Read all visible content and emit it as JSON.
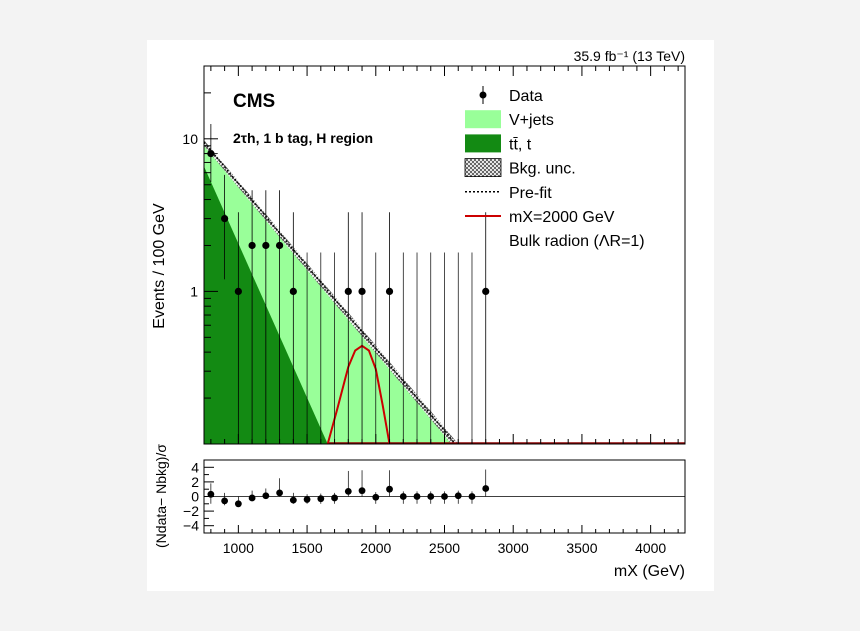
{
  "chart_data": [
    {
      "type": "stacked-area-with-points",
      "panel": "upper",
      "lumi_label": "35.9 fb⁻¹ (13 TeV)",
      "experiment": "CMS",
      "region_label": "2τh, 1 b tag, H region",
      "ylabel": "Events / 100 GeV",
      "yscale": "log",
      "ylim": [
        0.1,
        30
      ],
      "xlim": [
        750,
        4250
      ],
      "yticks": [
        "1",
        "10"
      ],
      "legend": [
        {
          "key": "data",
          "label": "Data"
        },
        {
          "key": "vjets",
          "label": "V+jets",
          "color": "#99ff99"
        },
        {
          "key": "ttbar",
          "label": "tt̄, t",
          "color": "#138a13"
        },
        {
          "key": "bkgunc",
          "label": "Bkg. unc."
        },
        {
          "key": "prefit",
          "label": "Pre-fit"
        },
        {
          "key": "signal",
          "label": "mX=2000 GeV",
          "color": "#cc0000"
        },
        {
          "key": "signal2",
          "label": "Bulk radion (ΛR=1)"
        }
      ],
      "data_points": [
        {
          "x": 800,
          "y": 8,
          "lo": 5.2,
          "hi": 12.5
        },
        {
          "x": 900,
          "y": 3,
          "lo": 1.2,
          "hi": 5.8
        },
        {
          "x": 1000,
          "y": 1,
          "lo": 0.1,
          "hi": 3.3
        },
        {
          "x": 1100,
          "y": 2,
          "lo": 0.1,
          "hi": 4.6
        },
        {
          "x": 1200,
          "y": 2,
          "lo": 0.1,
          "hi": 4.6
        },
        {
          "x": 1300,
          "y": 2,
          "lo": 0.1,
          "hi": 4.6
        },
        {
          "x": 1400,
          "y": 1,
          "lo": 0.1,
          "hi": 3.3
        },
        {
          "x": 1800,
          "y": 1,
          "lo": 0.1,
          "hi": 3.3
        },
        {
          "x": 1900,
          "y": 1,
          "lo": 0.1,
          "hi": 3.3
        },
        {
          "x": 2100,
          "y": 1,
          "lo": 0.1,
          "hi": 3.3
        },
        {
          "x": 2800,
          "y": 1,
          "lo": 0.1,
          "hi": 3.3
        }
      ],
      "empty_bins": [
        1500,
        1600,
        1700,
        2000,
        2200,
        2300,
        2400,
        2500,
        2600,
        2700
      ],
      "empty_bin_hi": 1.8,
      "vjets_total": [
        [
          750,
          9.0
        ],
        [
          2550,
          0.1
        ]
      ],
      "ttbar": [
        [
          750,
          6.6
        ],
        [
          1650,
          0.1
        ]
      ],
      "unc_band_upper": [
        [
          750,
          9.8
        ],
        [
          2600,
          0.1
        ]
      ],
      "prefit": [
        [
          750,
          9.5
        ],
        [
          2580,
          0.1
        ]
      ],
      "signal": [
        [
          1650,
          0.1
        ],
        [
          1720,
          0.17
        ],
        [
          1800,
          0.32
        ],
        [
          1850,
          0.41
        ],
        [
          1900,
          0.44
        ],
        [
          1950,
          0.41
        ],
        [
          2000,
          0.31
        ],
        [
          2050,
          0.18
        ],
        [
          2100,
          0.1
        ]
      ]
    },
    {
      "type": "scatter",
      "panel": "lower",
      "ylabel": "(Ndata− Nbkg)/σ",
      "xlabel": "mX (GeV)",
      "ylim": [
        -5,
        5
      ],
      "yticks": [
        "4",
        "2",
        "0",
        "−2",
        "−4"
      ],
      "xticks": [
        "1000",
        "1500",
        "2000",
        "2500",
        "3000",
        "3500",
        "4000"
      ],
      "xlim": [
        750,
        4250
      ],
      "points": [
        {
          "x": 800,
          "y": 0.3,
          "lo": -1.0,
          "hi": 1.8
        },
        {
          "x": 900,
          "y": -0.6,
          "lo": -1.2,
          "hi": 0.5
        },
        {
          "x": 1000,
          "y": -1.0,
          "lo": -1.4,
          "hi": 0.0
        },
        {
          "x": 1100,
          "y": -0.2,
          "lo": -0.6,
          "hi": 0.8
        },
        {
          "x": 1200,
          "y": 0.1,
          "lo": -0.3,
          "hi": 1.1
        },
        {
          "x": 1300,
          "y": 0.5,
          "lo": 0.0,
          "hi": 2.5
        },
        {
          "x": 1400,
          "y": -0.5,
          "lo": -1.0,
          "hi": 0.5
        },
        {
          "x": 1500,
          "y": -0.4,
          "lo": -1.0,
          "hi": 0.3
        },
        {
          "x": 1600,
          "y": -0.3,
          "lo": -1.0,
          "hi": 0.4
        },
        {
          "x": 1700,
          "y": -0.2,
          "lo": -1.0,
          "hi": 0.5
        },
        {
          "x": 1800,
          "y": 0.7,
          "lo": 0.0,
          "hi": 3.5
        },
        {
          "x": 1900,
          "y": 0.8,
          "lo": 0.0,
          "hi": 3.6
        },
        {
          "x": 2000,
          "y": -0.1,
          "lo": -1.0,
          "hi": 0.6
        },
        {
          "x": 2100,
          "y": 1.0,
          "lo": 0.0,
          "hi": 3.6
        },
        {
          "x": 2200,
          "y": 0.0,
          "lo": -1.0,
          "hi": 0.7
        },
        {
          "x": 2300,
          "y": 0.0,
          "lo": -1.0,
          "hi": 0.7
        },
        {
          "x": 2400,
          "y": 0.0,
          "lo": -1.0,
          "hi": 0.7
        },
        {
          "x": 2500,
          "y": 0.0,
          "lo": -1.0,
          "hi": 0.7
        },
        {
          "x": 2600,
          "y": 0.1,
          "lo": -1.0,
          "hi": 0.8
        },
        {
          "x": 2700,
          "y": 0.0,
          "lo": -1.0,
          "hi": 0.7
        },
        {
          "x": 2800,
          "y": 1.1,
          "lo": 0.0,
          "hi": 3.7
        }
      ]
    }
  ]
}
